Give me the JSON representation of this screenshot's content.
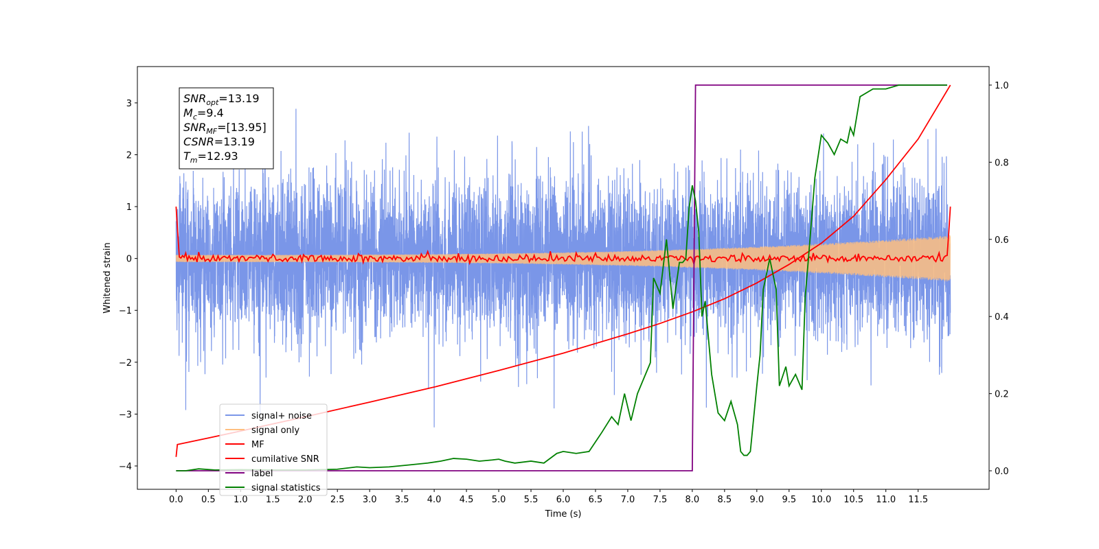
{
  "chart_data": {
    "type": "line",
    "title": "",
    "xlabel": "Time (s)",
    "ylabel": "Whitened strain",
    "xlim": [
      -0.6,
      12.6
    ],
    "ylim": [
      -4.45,
      3.7
    ],
    "y2lim": [
      -0.048,
      1.048
    ],
    "xticks": [
      0.0,
      0.5,
      1.0,
      1.5,
      2.0,
      2.5,
      3.0,
      3.5,
      4.0,
      4.5,
      5.0,
      5.5,
      6.0,
      6.5,
      7.0,
      7.5,
      8.0,
      8.5,
      9.0,
      9.5,
      10.0,
      10.5,
      11.0,
      11.5
    ],
    "xtick_labels": [
      "0.0",
      "0.5",
      "1.0",
      "1.5",
      "2.0",
      "2.5",
      "3.0",
      "3.5",
      "4.0",
      "4.5",
      "5.0",
      "5.5",
      "6.0",
      "6.5",
      "7.0",
      "7.5",
      "8.0",
      "8.5",
      "9.0",
      "9.5",
      "10.0",
      "10.5",
      "11.0",
      "11.5"
    ],
    "yticks": [
      -4,
      -3,
      -2,
      -1,
      0,
      1,
      2,
      3
    ],
    "ytick_labels": [
      "−4",
      "−3",
      "−2",
      "−1",
      "0",
      "1",
      "2",
      "3"
    ],
    "y2ticks": [
      0.0,
      0.2,
      0.4,
      0.6,
      0.8,
      1.0
    ],
    "y2tick_labels": [
      "0.0",
      "0.2",
      "0.4",
      "0.6",
      "0.8",
      "1.0"
    ],
    "grid": false,
    "legend_position": "lower-left",
    "series": [
      {
        "name": "signal+ noise",
        "color": "#7a96e8",
        "axis": "left",
        "noise_std": 0.75,
        "range": [
          -3.35,
          3.35
        ],
        "t_end": 12.0
      },
      {
        "name": "signal only",
        "color": "#ffbf7f",
        "axis": "left",
        "amplitude_start": 0.07,
        "amplitude_end": 0.45,
        "t_end": 12.0
      },
      {
        "name": "MF",
        "color": "#ff0000",
        "axis": "left",
        "start_value": 1.0,
        "level": 0.0,
        "jitter": 0.06,
        "end_value": 1.0,
        "t_end": 12.0
      },
      {
        "name": "cumilative SNR",
        "color": "#ff0000",
        "axis": "right",
        "x": [
          0.0,
          0.02,
          0.5,
          1.0,
          2.0,
          3.0,
          4.0,
          5.0,
          6.0,
          7.0,
          7.5,
          8.0,
          8.5,
          9.0,
          9.5,
          10.0,
          10.5,
          11.0,
          11.5,
          12.0
        ],
        "y": [
          0.036,
          0.068,
          0.085,
          0.103,
          0.14,
          0.178,
          0.217,
          0.26,
          0.305,
          0.355,
          0.382,
          0.412,
          0.446,
          0.487,
          0.535,
          0.59,
          0.66,
          0.755,
          0.86,
          1.0
        ]
      },
      {
        "name": "label",
        "color": "#800080",
        "axis": "right",
        "x": [
          0.0,
          8.0,
          8.05,
          11.95
        ],
        "y": [
          0.0,
          0.0,
          1.0,
          1.0
        ]
      },
      {
        "name": "signal statistics",
        "color": "#008000",
        "axis": "right",
        "x": [
          0.0,
          0.15,
          0.35,
          0.6,
          1.0,
          1.5,
          2.0,
          2.5,
          2.8,
          3.0,
          3.3,
          3.6,
          3.9,
          4.1,
          4.3,
          4.5,
          4.7,
          4.9,
          5.0,
          5.1,
          5.25,
          5.5,
          5.7,
          5.9,
          6.0,
          6.2,
          6.4,
          6.6,
          6.75,
          6.85,
          6.95,
          7.05,
          7.15,
          7.25,
          7.35,
          7.4,
          7.5,
          7.6,
          7.7,
          7.8,
          7.85,
          7.9,
          7.95,
          8.0,
          8.05,
          8.1,
          8.15,
          8.2,
          8.3,
          8.4,
          8.5,
          8.6,
          8.7,
          8.75,
          8.8,
          8.85,
          8.9,
          9.0,
          9.05,
          9.1,
          9.2,
          9.3,
          9.35,
          9.45,
          9.5,
          9.6,
          9.7,
          9.75,
          9.8,
          9.9,
          10.0,
          10.1,
          10.2,
          10.3,
          10.4,
          10.45,
          10.5,
          10.6,
          10.8,
          11.0,
          11.2,
          11.5,
          11.95
        ],
        "y": [
          0.0,
          0.0,
          0.005,
          0.002,
          0.003,
          0.002,
          0.002,
          0.004,
          0.01,
          0.008,
          0.01,
          0.015,
          0.02,
          0.025,
          0.032,
          0.03,
          0.025,
          0.028,
          0.03,
          0.025,
          0.02,
          0.025,
          0.02,
          0.045,
          0.05,
          0.045,
          0.05,
          0.1,
          0.14,
          0.12,
          0.2,
          0.13,
          0.2,
          0.24,
          0.28,
          0.5,
          0.46,
          0.6,
          0.42,
          0.54,
          0.54,
          0.55,
          0.68,
          0.74,
          0.7,
          0.62,
          0.4,
          0.44,
          0.25,
          0.15,
          0.13,
          0.18,
          0.12,
          0.05,
          0.04,
          0.04,
          0.05,
          0.22,
          0.3,
          0.47,
          0.55,
          0.47,
          0.22,
          0.27,
          0.22,
          0.25,
          0.21,
          0.45,
          0.55,
          0.76,
          0.87,
          0.85,
          0.82,
          0.86,
          0.85,
          0.89,
          0.87,
          0.97,
          0.99,
          0.99,
          1.0,
          1.0,
          1.0
        ]
      }
    ],
    "annotation": {
      "lines": [
        {
          "base": "SNR",
          "sub": "opt",
          "value": "=13.19"
        },
        {
          "base": "M",
          "sub": "c",
          "value": "=9.4"
        },
        {
          "base": "SNR",
          "sub": "MF",
          "value": "=[13.95]"
        },
        {
          "base": "CSNR",
          "sub": "",
          "value": "=13.19"
        },
        {
          "base": "T",
          "sub": "m",
          "value": "=12.93"
        }
      ]
    }
  }
}
